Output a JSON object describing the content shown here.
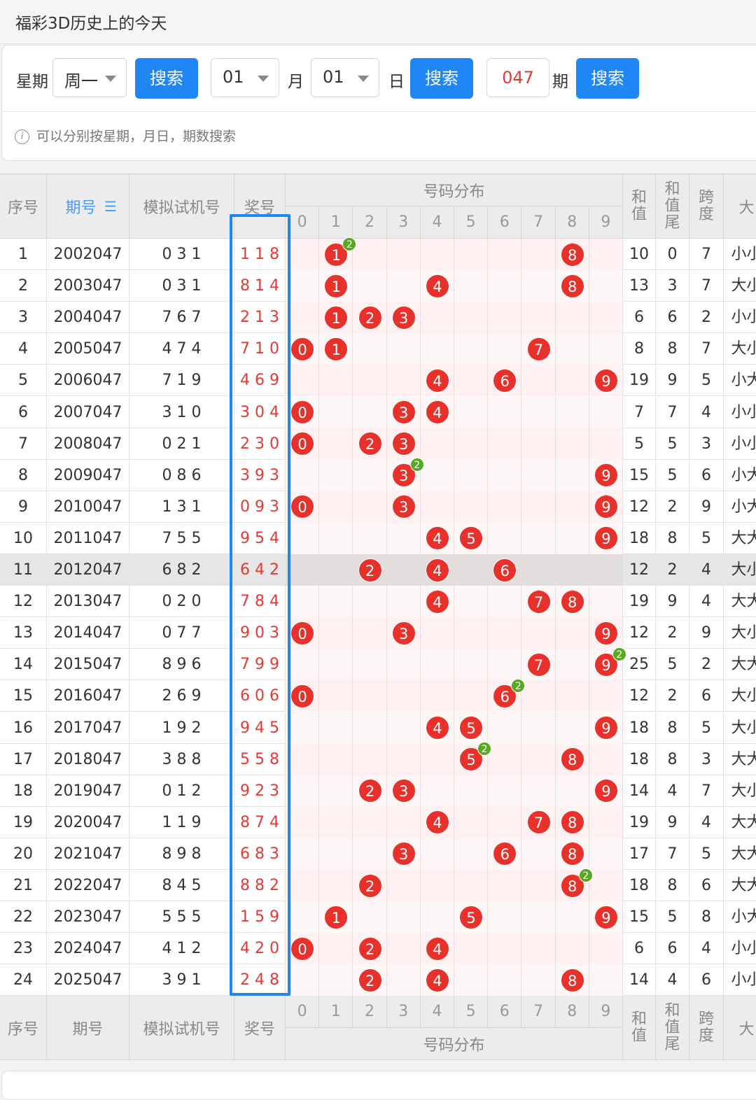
{
  "page_title": "福彩3D历史上的今天",
  "search": {
    "weekday_label": "星期",
    "weekday_value": "周一",
    "search_btn": "搜索",
    "month_value": "01",
    "month_label": "月",
    "day_value": "01",
    "day_label": "日",
    "issue_value": "047",
    "issue_label": "期",
    "hint": "可以分别按星期，月日，期数搜索"
  },
  "table": {
    "headers": {
      "seq": "序号",
      "issue": "期号",
      "issue_sort_icon": "sort-icon",
      "trial": "模拟试机号",
      "prize": "奖号",
      "dist": "号码分布",
      "sum": "和值",
      "sum_tail": "和值尾",
      "span": "跨度",
      "size": "大"
    },
    "digits": [
      "0",
      "1",
      "2",
      "3",
      "4",
      "5",
      "6",
      "7",
      "8",
      "9"
    ],
    "rows": [
      {
        "seq": "1",
        "issue": "2002047",
        "trial": "0 3 1",
        "prize": "1 1 8",
        "sum": "10",
        "tail": "0",
        "span": "7",
        "size": "小小"
      },
      {
        "seq": "2",
        "issue": "2003047",
        "trial": "0 3 1",
        "prize": "8 1 4",
        "sum": "13",
        "tail": "3",
        "span": "7",
        "size": "大小"
      },
      {
        "seq": "3",
        "issue": "2004047",
        "trial": "7 6 7",
        "prize": "2 1 3",
        "sum": "6",
        "tail": "6",
        "span": "2",
        "size": "小小"
      },
      {
        "seq": "4",
        "issue": "2005047",
        "trial": "4 7 4",
        "prize": "7 1 0",
        "sum": "8",
        "tail": "8",
        "span": "7",
        "size": "大小"
      },
      {
        "seq": "5",
        "issue": "2006047",
        "trial": "7 1 9",
        "prize": "4 6 9",
        "sum": "19",
        "tail": "9",
        "span": "5",
        "size": "小大"
      },
      {
        "seq": "6",
        "issue": "2007047",
        "trial": "3 1 0",
        "prize": "3 0 4",
        "sum": "7",
        "tail": "7",
        "span": "4",
        "size": "小小"
      },
      {
        "seq": "7",
        "issue": "2008047",
        "trial": "0 2 1",
        "prize": "2 3 0",
        "sum": "5",
        "tail": "5",
        "span": "3",
        "size": "小小"
      },
      {
        "seq": "8",
        "issue": "2009047",
        "trial": "0 8 6",
        "prize": "3 9 3",
        "sum": "15",
        "tail": "5",
        "span": "6",
        "size": "小大"
      },
      {
        "seq": "9",
        "issue": "2010047",
        "trial": "1 3 1",
        "prize": "0 9 3",
        "sum": "12",
        "tail": "2",
        "span": "9",
        "size": "小大"
      },
      {
        "seq": "10",
        "issue": "2011047",
        "trial": "7 5 5",
        "prize": "9 5 4",
        "sum": "18",
        "tail": "8",
        "span": "5",
        "size": "大大"
      },
      {
        "seq": "11",
        "issue": "2012047",
        "trial": "6 8 2",
        "prize": "6 4 2",
        "sum": "12",
        "tail": "2",
        "span": "4",
        "size": "大小"
      },
      {
        "seq": "12",
        "issue": "2013047",
        "trial": "0 2 0",
        "prize": "7 8 4",
        "sum": "19",
        "tail": "9",
        "span": "4",
        "size": "大大"
      },
      {
        "seq": "13",
        "issue": "2014047",
        "trial": "0 7 7",
        "prize": "9 0 3",
        "sum": "12",
        "tail": "2",
        "span": "9",
        "size": "大小"
      },
      {
        "seq": "14",
        "issue": "2015047",
        "trial": "8 9 6",
        "prize": "7 9 9",
        "sum": "25",
        "tail": "5",
        "span": "2",
        "size": "大大"
      },
      {
        "seq": "15",
        "issue": "2016047",
        "trial": "2 6 9",
        "prize": "6 0 6",
        "sum": "12",
        "tail": "2",
        "span": "6",
        "size": "大小"
      },
      {
        "seq": "16",
        "issue": "2017047",
        "trial": "1 9 2",
        "prize": "9 4 5",
        "sum": "18",
        "tail": "8",
        "span": "5",
        "size": "大小"
      },
      {
        "seq": "17",
        "issue": "2018047",
        "trial": "3 8 8",
        "prize": "5 5 8",
        "sum": "18",
        "tail": "8",
        "span": "3",
        "size": "大大"
      },
      {
        "seq": "18",
        "issue": "2019047",
        "trial": "0 1 2",
        "prize": "9 2 3",
        "sum": "14",
        "tail": "4",
        "span": "7",
        "size": "大小"
      },
      {
        "seq": "19",
        "issue": "2020047",
        "trial": "1 1 9",
        "prize": "8 7 4",
        "sum": "19",
        "tail": "9",
        "span": "4",
        "size": "大大"
      },
      {
        "seq": "20",
        "issue": "2021047",
        "trial": "8 9 8",
        "prize": "6 8 3",
        "sum": "17",
        "tail": "7",
        "span": "5",
        "size": "大大"
      },
      {
        "seq": "21",
        "issue": "2022047",
        "trial": "8 4 5",
        "prize": "8 8 2",
        "sum": "18",
        "tail": "8",
        "span": "6",
        "size": "大大"
      },
      {
        "seq": "22",
        "issue": "2023047",
        "trial": "5 5 5",
        "prize": "1 5 9",
        "sum": "15",
        "tail": "5",
        "span": "8",
        "size": "小大"
      },
      {
        "seq": "23",
        "issue": "2024047",
        "trial": "4 1 2",
        "prize": "4 2 0",
        "sum": "6",
        "tail": "6",
        "span": "4",
        "size": "小小"
      },
      {
        "seq": "24",
        "issue": "2025047",
        "trial": "3 9 1",
        "prize": "2 4 8",
        "sum": "14",
        "tail": "4",
        "span": "6",
        "size": "小小"
      }
    ],
    "highlight_row": 11,
    "ball_color": "#e8312b",
    "repeat_badge_color": "#58a822",
    "repeat_badge_text": "2",
    "accent_color": "#1f87f5"
  }
}
